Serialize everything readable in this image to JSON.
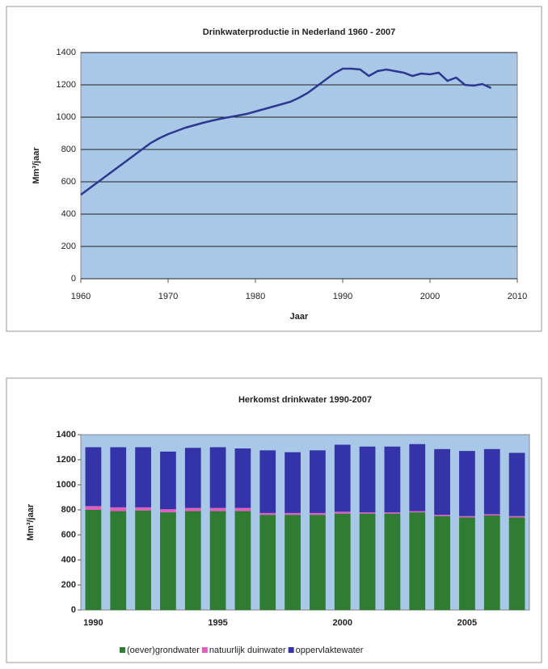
{
  "chart_data": [
    {
      "type": "line",
      "title": "Drinkwaterproductie in Nederland 1960 - 2007",
      "xlabel": "Jaar",
      "ylabel": "Mm³/jaar",
      "x": [
        1960,
        1961,
        1962,
        1963,
        1964,
        1965,
        1966,
        1967,
        1968,
        1969,
        1970,
        1971,
        1972,
        1973,
        1974,
        1975,
        1976,
        1977,
        1978,
        1979,
        1980,
        1981,
        1982,
        1983,
        1984,
        1985,
        1986,
        1987,
        1988,
        1989,
        1990,
        1991,
        1992,
        1993,
        1994,
        1995,
        1996,
        1997,
        1998,
        1999,
        2000,
        2001,
        2002,
        2003,
        2004,
        2005,
        2006,
        2007
      ],
      "values": [
        520,
        560,
        600,
        640,
        680,
        720,
        760,
        800,
        840,
        870,
        895,
        915,
        935,
        950,
        965,
        978,
        990,
        1000,
        1010,
        1020,
        1035,
        1050,
        1065,
        1080,
        1095,
        1120,
        1150,
        1190,
        1230,
        1270,
        1300,
        1300,
        1295,
        1255,
        1285,
        1295,
        1285,
        1275,
        1255,
        1270,
        1265,
        1275,
        1225,
        1245,
        1200,
        1195,
        1205,
        1180
      ],
      "color": "#2b3990",
      "xlim": [
        1960,
        2010
      ],
      "xticks": [
        1960,
        1970,
        1980,
        1990,
        2000,
        2010
      ],
      "ylim": [
        0,
        1400
      ],
      "yticks": [
        0,
        200,
        400,
        600,
        800,
        1000,
        1200,
        1400
      ],
      "grid": true
    },
    {
      "type": "stacked_bar",
      "title": "Herkomst drinkwater 1990-2007",
      "ylabel": "Mm³/jaar",
      "categories": [
        "1990",
        null,
        null,
        null,
        null,
        "1995",
        null,
        null,
        null,
        null,
        "2000",
        null,
        null,
        null,
        null,
        "2005",
        null,
        null
      ],
      "series": [
        {
          "name": "(oever)grondwater",
          "color": "#2e7d32",
          "values": [
            800,
            790,
            795,
            780,
            790,
            790,
            790,
            760,
            760,
            760,
            770,
            770,
            770,
            780,
            750,
            740,
            755,
            740
          ]
        },
        {
          "name": "natuurlijk duinwater",
          "color": "#e060c0",
          "values": [
            30,
            30,
            25,
            25,
            25,
            25,
            25,
            15,
            15,
            15,
            15,
            10,
            10,
            10,
            10,
            10,
            10,
            10
          ]
        },
        {
          "name": "oppervlaktewater",
          "color": "#3434a8",
          "values": [
            470,
            480,
            480,
            460,
            480,
            485,
            475,
            500,
            485,
            500,
            535,
            525,
            525,
            535,
            525,
            520,
            520,
            505
          ]
        }
      ],
      "ylim": [
        0,
        1400
      ],
      "yticks": [
        0,
        200,
        400,
        600,
        800,
        1000,
        1200,
        1400
      ],
      "grid": false,
      "legend": "bottom"
    }
  ]
}
